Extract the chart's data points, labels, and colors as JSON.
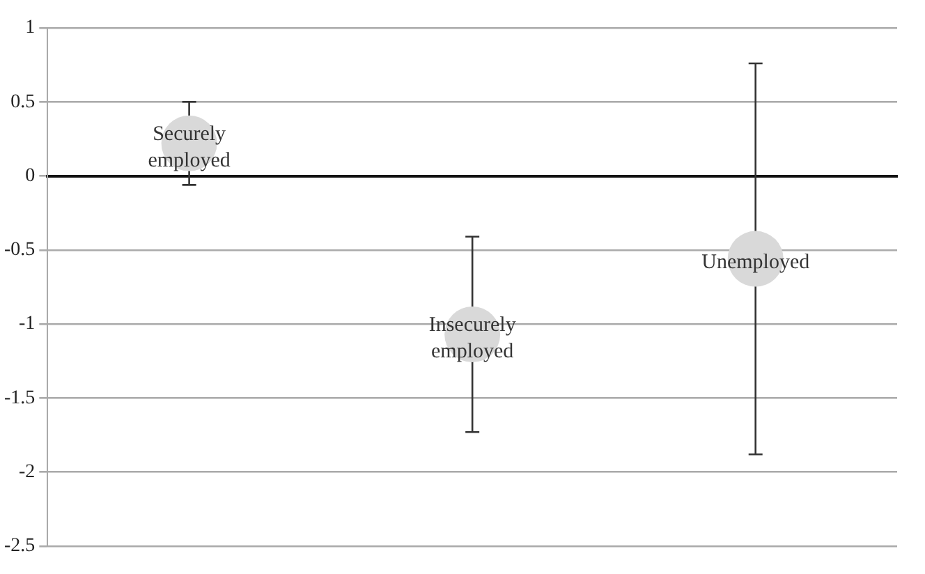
{
  "chart_data": {
    "type": "scatter",
    "categories": [
      null,
      null,
      null
    ],
    "series": [
      {
        "name": "Securely employed",
        "color": "#d9d9d9",
        "values": [
          0.22,
          null,
          null
        ],
        "errors": [
          0.28,
          null,
          null
        ]
      },
      {
        "name": "Insecurely employed",
        "color": "#d9d9d9",
        "values": [
          null,
          -1.07,
          null
        ],
        "errors": [
          null,
          0.66,
          null
        ]
      },
      {
        "name": "Unemployed",
        "color": "#d9d9d9",
        "values": [
          null,
          null,
          -0.56
        ],
        "errors": [
          null,
          null,
          1.32
        ]
      }
    ],
    "ylim": [
      -2.5,
      1
    ],
    "yticks": [
      -2.5,
      -2,
      -1.5,
      -1,
      -0.5,
      0,
      0.5,
      1
    ],
    "grid": "y",
    "legend": false,
    "marker": "circle",
    "tick_labels": "y"
  }
}
